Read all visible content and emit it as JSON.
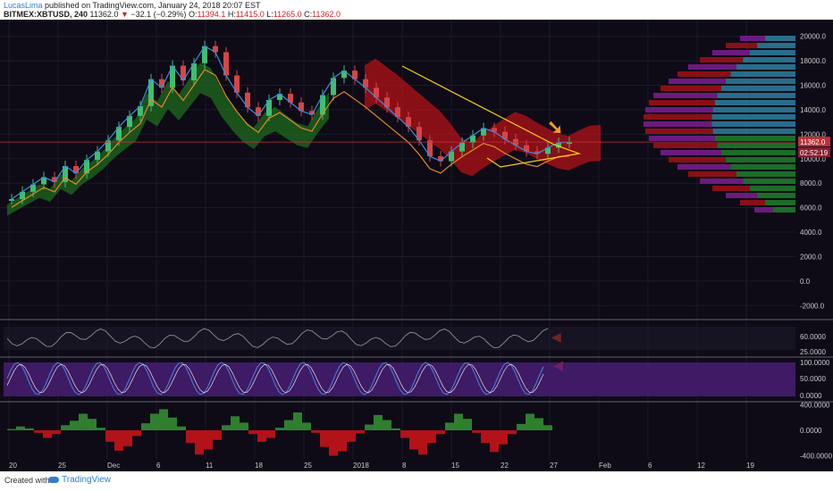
{
  "header": {
    "author": "LucasLima",
    "published": "published on TradingView.com, January 24, 2018 20:07 EST",
    "symbol": "BITMEX:XBTUSD, 240",
    "last": "11362.0",
    "change_arrow": "▼",
    "change": "−32.1 (−0.29%)",
    "ohlc": {
      "o_label": "O:",
      "o": "11394.1",
      "h_label": "H:",
      "h": "11415.0",
      "l_label": "L:",
      "l": "11265.0",
      "c_label": "C:",
      "c": "11362.0"
    }
  },
  "footer": {
    "created": "Created with",
    "brand": "TradingView"
  },
  "colors": {
    "bg": "#0e0b17",
    "cloud_green": "#1f6b1f",
    "cloud_red": "#b31218",
    "candle_up": "#3fbf6f",
    "candle_down": "#d64545",
    "ma_orange": "#e08a2a",
    "ma_blue": "#3a8fe0",
    "trend": "#f5d216",
    "rsi": "#8d8d8d",
    "stoch_k": "#4d7fe6",
    "stoch_d": "#e0e0e0",
    "stoch_band": "#4b1f78",
    "macd_up": "#2f7f2f",
    "macd_down": "#b31218",
    "arrow_red": "#ff2a2a",
    "arrow_orange": "#ff9a1a"
  },
  "chart_data": [
    {
      "type": "line",
      "x": [
        0,
        12,
        24,
        36,
        48,
        60,
        72,
        84,
        96,
        108,
        120,
        132,
        144,
        156,
        168,
        180,
        192,
        204,
        216,
        228,
        240,
        252,
        264,
        276,
        288,
        300,
        312,
        324,
        336,
        348,
        360,
        372,
        384,
        396,
        408,
        420,
        432,
        444,
        456,
        468,
        480,
        492,
        504,
        516,
        528,
        540,
        552,
        564,
        576,
        588,
        600,
        612,
        624
      ],
      "series": [
        {
          "values": [
            6700,
            7300,
            7900,
            8500,
            8100,
            9400,
            8800,
            9900,
            10600,
            11500,
            12600,
            13500,
            14300,
            16500,
            15800,
            17600,
            16400,
            17800,
            19200,
            18700,
            16800,
            15400,
            14200,
            13500,
            14800,
            15300,
            14600,
            13900,
            13600,
            15200,
            16600,
            17200,
            16500,
            15800,
            15000,
            14200,
            13400,
            12600,
            11500,
            10200,
            9800,
            10600,
            11300,
            11900,
            12500,
            12200,
            11600,
            11100,
            10600,
            10400,
            10900,
            11300,
            11362
          ]
        }
      ],
      "ylim": [
        -3000,
        21000
      ],
      "y_ticks": [
        "20000.0",
        "18000.0",
        "16000.0",
        "14000.0",
        "12000.0",
        "10000.0",
        "8000.0",
        "6000.0",
        "4000.0",
        "2000.0",
        "0.0",
        "-2000.0"
      ],
      "x_ticks": [
        "20",
        "25",
        "Dec",
        "6",
        "11",
        "18",
        "25",
        "2018",
        "8",
        "15",
        "22",
        "27",
        "Feb",
        "6",
        "12",
        "19"
      ],
      "price_labels": [
        "11362.0",
        "02:52:19"
      ]
    },
    {
      "type": "line",
      "ylim": [
        0,
        100
      ],
      "y_ticks": [
        "60.0000",
        "25.0000"
      ]
    },
    {
      "type": "line",
      "ylim": [
        -20,
        120
      ],
      "y_ticks": [
        "100.0000",
        "50.0000",
        "0.0000"
      ]
    },
    {
      "type": "bar",
      "x": [
        0,
        1,
        2,
        3,
        4,
        5,
        6,
        7,
        8,
        9,
        10,
        11,
        12,
        13,
        14,
        15,
        16,
        17,
        18,
        19,
        20,
        21,
        22,
        23,
        24,
        25,
        26,
        27,
        28,
        29,
        30,
        31,
        32,
        33,
        34,
        35,
        36,
        37,
        38,
        39,
        40,
        41,
        42,
        43,
        44,
        45,
        46,
        47,
        48,
        49,
        50,
        51,
        52,
        53,
        54,
        55,
        56,
        57,
        58,
        59,
        60
      ],
      "values": [
        20,
        60,
        30,
        -40,
        -120,
        -60,
        80,
        150,
        260,
        180,
        40,
        -180,
        -320,
        -250,
        -90,
        110,
        260,
        330,
        200,
        60,
        -200,
        -380,
        -300,
        -150,
        80,
        220,
        120,
        -60,
        -180,
        -120,
        40,
        160,
        280,
        120,
        -40,
        -260,
        -400,
        -330,
        -180,
        -50,
        90,
        240,
        160,
        30,
        -120,
        -300,
        -380,
        -200,
        -60,
        120,
        260,
        180,
        -40,
        -200,
        -340,
        -220,
        -60,
        100,
        260,
        190,
        80
      ],
      "ylim": [
        -420,
        420
      ],
      "y_ticks": [
        "400.0000",
        "0.0000",
        "-400.0000"
      ]
    }
  ]
}
